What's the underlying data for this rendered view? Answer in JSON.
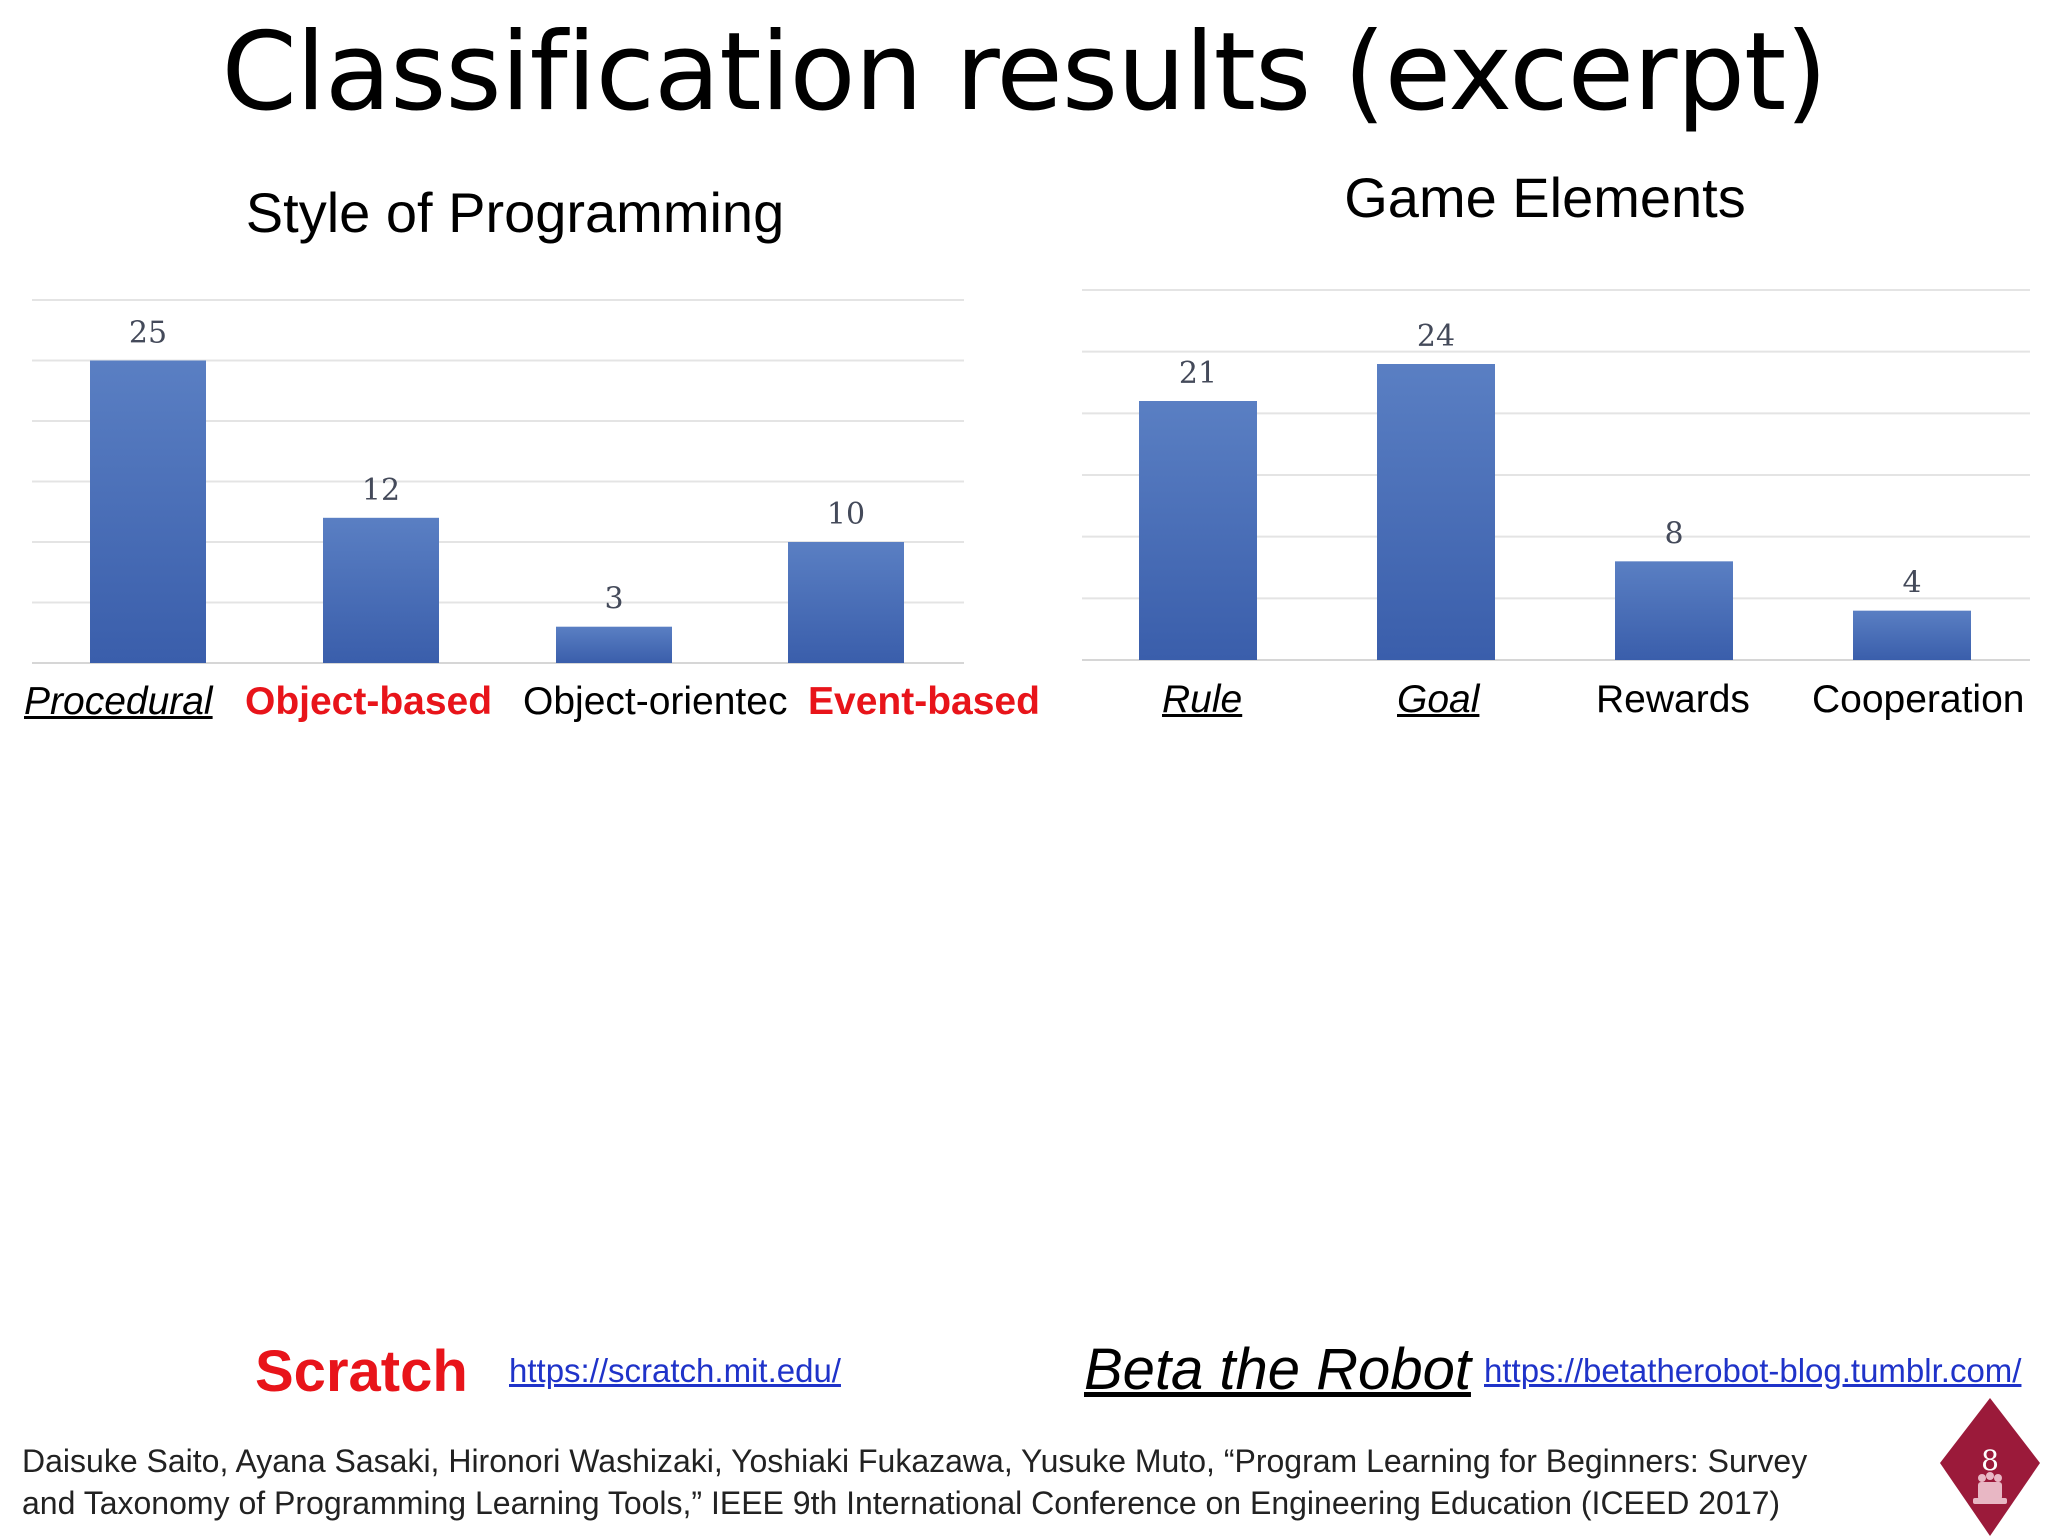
{
  "slide": {
    "title": "Classification results (excerpt)",
    "page_number": "8"
  },
  "chart_data": [
    {
      "type": "bar",
      "title": "Style of Programming",
      "categories": [
        "Procedural",
        "Object-based",
        "Object-orientec",
        "Event-based"
      ],
      "values": [
        25,
        12,
        3,
        10
      ],
      "data_labels": [
        "25",
        "12",
        "3",
        "10"
      ],
      "category_styles": [
        "italic-underline",
        "bold-red",
        "plain",
        "bold-red"
      ],
      "ylim": [
        0,
        30
      ],
      "grid": true,
      "bar_color": "#3a5eab"
    },
    {
      "type": "bar",
      "title": "Game Elements",
      "categories": [
        "Rule",
        "Goal",
        "Rewards",
        "Cooperation"
      ],
      "values": [
        21,
        24,
        8,
        4
      ],
      "data_labels": [
        "21",
        "24",
        "8",
        "4"
      ],
      "category_styles": [
        "italic-underline",
        "italic-underline",
        "plain",
        "plain"
      ],
      "ylim": [
        0,
        30
      ],
      "grid": true,
      "bar_color": "#3a5eab"
    }
  ],
  "tools": {
    "scratch": {
      "name": "Scratch",
      "url": "https://scratch.mit.edu/"
    },
    "beta": {
      "name": "Beta the Robot",
      "url": "https://betatherobot-blog.tumblr.com/"
    }
  },
  "citation": {
    "line1": "Daisuke Saito, Ayana Sasaki, Hironori Washizaki, Yoshiaki Fukazawa, Yusuke Muto, “Program Learning for Beginners: Survey",
    "line2": "and Taxonomy of Programming Learning Tools,” IEEE 9th International Conference on Engineering Education (ICEED 2017)"
  },
  "colors": {
    "accent_red": "#e8141a",
    "link_blue": "#1f33c9",
    "badge": "#9b1a3a"
  }
}
